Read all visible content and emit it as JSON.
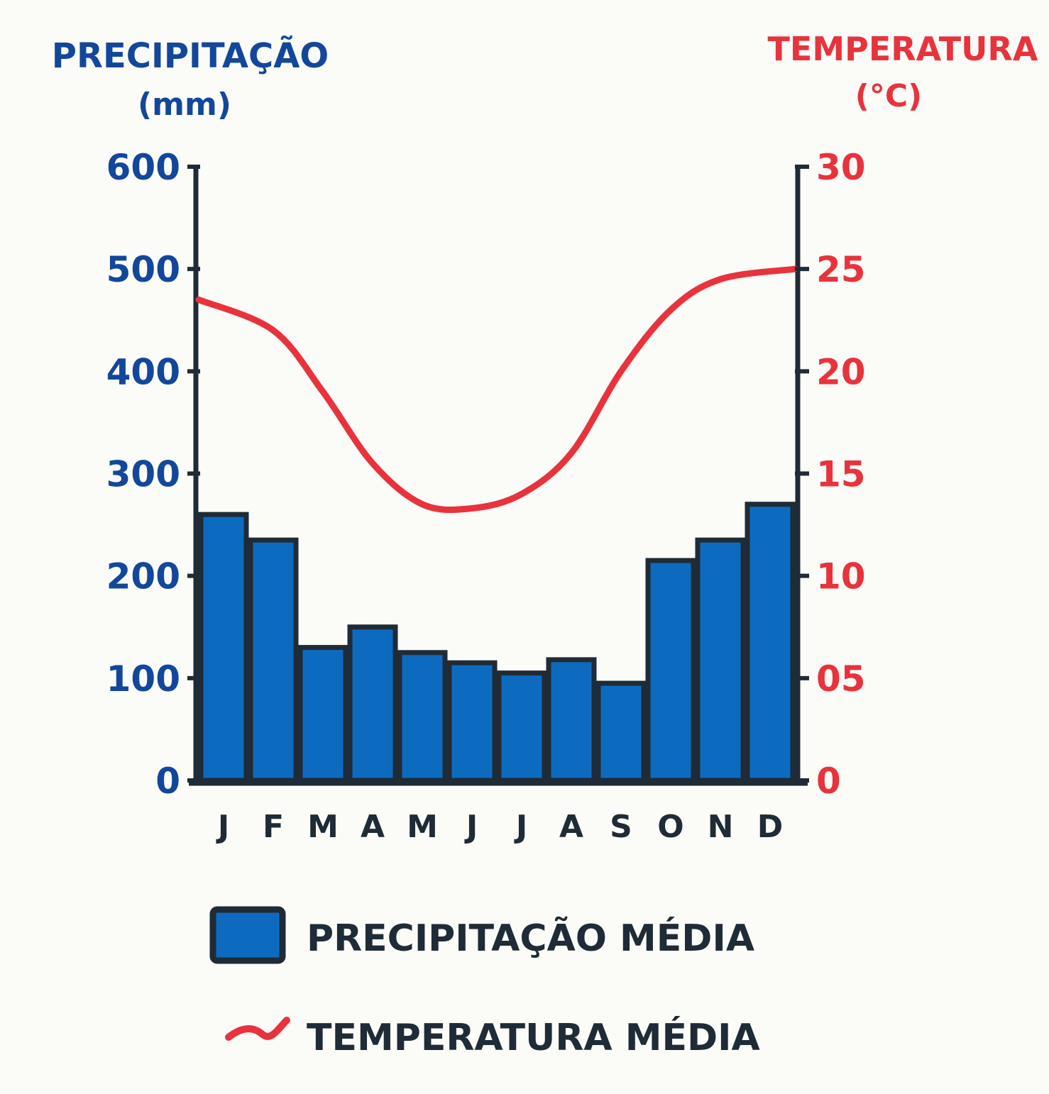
{
  "chart_data": {
    "type": "bar",
    "colors": {
      "bar_fill": "#0d6bbf",
      "bar_stroke": "#1f2b36",
      "line": "#e8333c",
      "left_axis_text": "#12479b",
      "right_axis_text": "#e8333c",
      "axis": "#1f2b36",
      "legend_text": "#1f2b36"
    },
    "left_axis": {
      "title": "PRECIPITAÇÃO",
      "unit": "(mm)",
      "ylim": [
        0,
        600
      ],
      "ticks": [
        "0",
        "100",
        "200",
        "300",
        "400",
        "500",
        "600"
      ]
    },
    "right_axis": {
      "title": "TEMPERATURA",
      "unit": "(°C)",
      "ylim": [
        0,
        30
      ],
      "ticks": [
        "0",
        "05",
        "10",
        "15",
        "20",
        "25",
        "30"
      ]
    },
    "categories": [
      "J",
      "F",
      "M",
      "A",
      "M",
      "J",
      "J",
      "A",
      "S",
      "O",
      "N",
      "D"
    ],
    "series": [
      {
        "name": "PRECIPITAÇÃO MÉDIA",
        "kind": "bar",
        "axis": "left",
        "values": [
          260,
          235,
          130,
          150,
          125,
          115,
          105,
          118,
          95,
          215,
          235,
          270
        ]
      },
      {
        "name": "TEMPERATURA MÉDIA",
        "kind": "line",
        "axis": "right",
        "values": [
          23.5,
          22,
          19,
          15.5,
          13.5,
          13.3,
          14,
          16,
          20,
          23,
          24.5,
          25
        ]
      }
    ],
    "grid": false,
    "legend": "bottom"
  }
}
